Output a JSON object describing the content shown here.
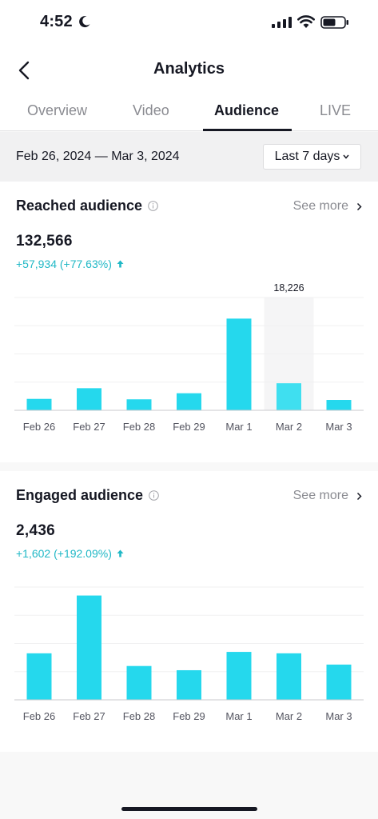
{
  "status_bar": {
    "time": "4:52"
  },
  "header": {
    "title": "Analytics"
  },
  "tabs": [
    {
      "label": "Overview",
      "active": false
    },
    {
      "label": "Video",
      "active": false
    },
    {
      "label": "Audience",
      "active": true
    },
    {
      "label": "LIVE",
      "active": false
    }
  ],
  "date_range": "Feb 26, 2024 — Mar 3, 2024",
  "period_select": {
    "selected": "Last 7 days"
  },
  "reached": {
    "title": "Reached audience",
    "see_more": "See more",
    "total": "132,566",
    "change": "+57,934 (+77.63%)"
  },
  "engaged": {
    "title": "Engaged audience",
    "see_more": "See more",
    "total": "2,436",
    "change": "+1,602 (+192.09%)"
  },
  "chart_data": [
    {
      "type": "bar",
      "categories": [
        "Feb 26",
        "Feb 27",
        "Feb 28",
        "Feb 29",
        "Mar 1",
        "Mar 2",
        "Mar 3"
      ],
      "values": [
        7700,
        14900,
        7400,
        11500,
        61800,
        18226,
        7000
      ],
      "ylim": [
        0,
        76000
      ],
      "highlighted_index": 5,
      "highlight_label": "18,226",
      "grid": true,
      "bar_color": "#25d8ed",
      "highlight_bar_color": "#3fdff0"
    },
    {
      "type": "bar",
      "categories": [
        "Feb 26",
        "Feb 27",
        "Feb 28",
        "Feb 29",
        "Mar 1",
        "Mar 2",
        "Mar 3"
      ],
      "values": [
        330,
        740,
        240,
        210,
        340,
        330,
        250
      ],
      "ylim": [
        0,
        800
      ],
      "grid": true,
      "bar_color": "#25d8ed"
    }
  ],
  "colors": {
    "accent": "#25d8ed",
    "change_text": "#20b8c6"
  }
}
